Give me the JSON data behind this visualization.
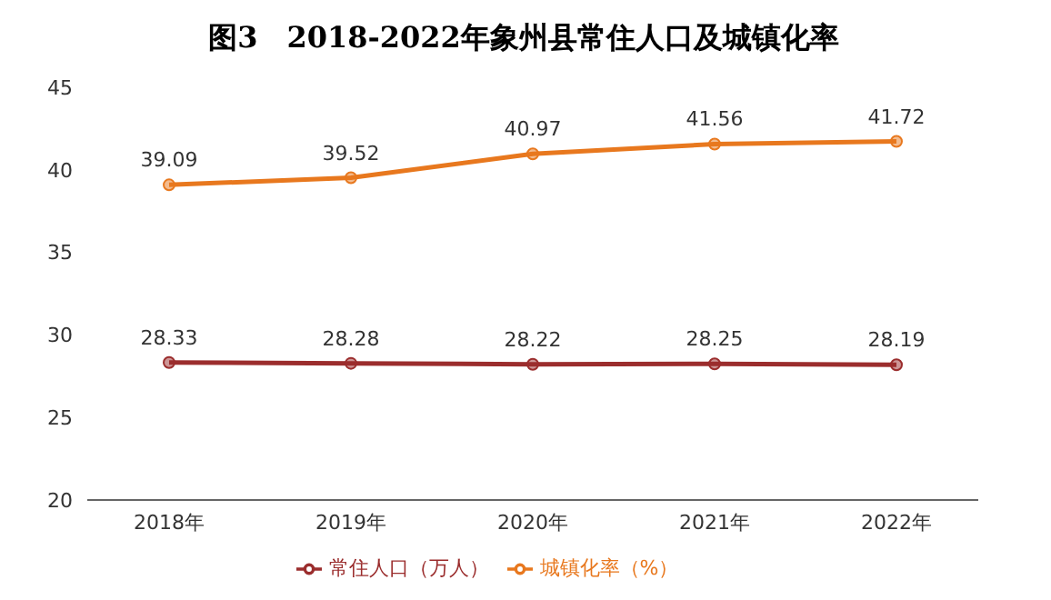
{
  "chart_data": {
    "type": "line",
    "title": "图3　2018-2022年象州县常住人口及城镇化率",
    "categories": [
      "2018年",
      "2019年",
      "2020年",
      "2021年",
      "2022年"
    ],
    "series": [
      {
        "name": "常住人口（万人）",
        "color": "#9b2d2d",
        "values": [
          28.33,
          28.28,
          28.22,
          28.25,
          28.19
        ]
      },
      {
        "name": "城镇化率（%）",
        "color": "#e8781e",
        "values": [
          39.09,
          39.52,
          40.97,
          41.56,
          41.72
        ]
      }
    ],
    "ylim": [
      20,
      45
    ],
    "yticks": [
      20,
      25,
      30,
      35,
      40,
      45
    ],
    "grid": false,
    "legend": "bottom",
    "marker": "circle",
    "line_style": "solid",
    "data_labels": true
  }
}
